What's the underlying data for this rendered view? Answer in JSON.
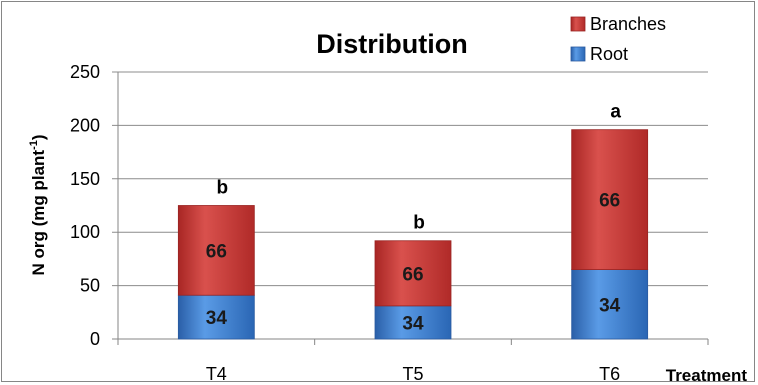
{
  "chart_data": {
    "type": "bar",
    "stacked": true,
    "title": "Distribution",
    "xlabel": "Treatment",
    "ylabel_main": "N org (mg plant",
    "ylabel_sup": "-1",
    "ylabel_close": ")",
    "categories": [
      "T4",
      "T5",
      "T6"
    ],
    "ylim": [
      0,
      250
    ],
    "yticks": [
      "0",
      "50",
      "100",
      "150",
      "200",
      "250"
    ],
    "series": [
      {
        "name": "Root",
        "values": [
          41,
          31,
          65
        ],
        "labels": [
          "34",
          "34",
          "34"
        ],
        "color": "#3a7fd0"
      },
      {
        "name": "Branches",
        "values": [
          84,
          61,
          131
        ],
        "labels": [
          "66",
          "66",
          "66"
        ],
        "color": "#c0302c"
      }
    ],
    "annotations": [
      "b",
      "b",
      "a"
    ],
    "grid": true,
    "legend": "top-right"
  }
}
